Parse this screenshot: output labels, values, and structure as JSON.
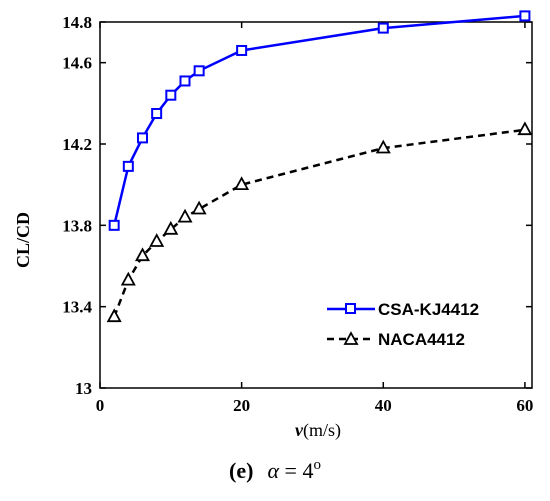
{
  "chart_data": {
    "type": "line",
    "xlabel_var": "v",
    "xlabel_unit": "(m/s)",
    "ylabel": "CL/CD",
    "xlim": [
      0,
      61
    ],
    "ylim": [
      13,
      14.8
    ],
    "xticks": [
      0,
      20,
      40,
      60
    ],
    "yticks": [
      13,
      13.4,
      13.8,
      14.2,
      14.6,
      14.8
    ],
    "ytick_labels": [
      "13",
      "13.4",
      "13.8",
      "14.2",
      "14.6",
      "14.8"
    ],
    "grid": false,
    "legend_position": "lower-right",
    "series": [
      {
        "name": "CSA-KJ4412",
        "color": "#0000ff",
        "line_style": "solid",
        "marker": "square",
        "x": [
          2,
          4,
          6,
          8,
          10,
          12,
          14,
          20,
          40,
          60
        ],
        "y": [
          13.8,
          14.09,
          14.23,
          14.35,
          14.44,
          14.51,
          14.56,
          14.66,
          14.77,
          14.83
        ]
      },
      {
        "name": "NACA4412",
        "color": "#000000",
        "line_style": "dashed",
        "marker": "triangle",
        "x": [
          2,
          4,
          6,
          8,
          10,
          12,
          14,
          20,
          40,
          60
        ],
        "y": [
          13.35,
          13.53,
          13.65,
          13.72,
          13.78,
          13.84,
          13.88,
          14.0,
          14.18,
          14.27
        ]
      }
    ]
  },
  "caption": {
    "label": "(e)",
    "alpha": "α",
    "eq": " = 4",
    "sup": "o"
  }
}
